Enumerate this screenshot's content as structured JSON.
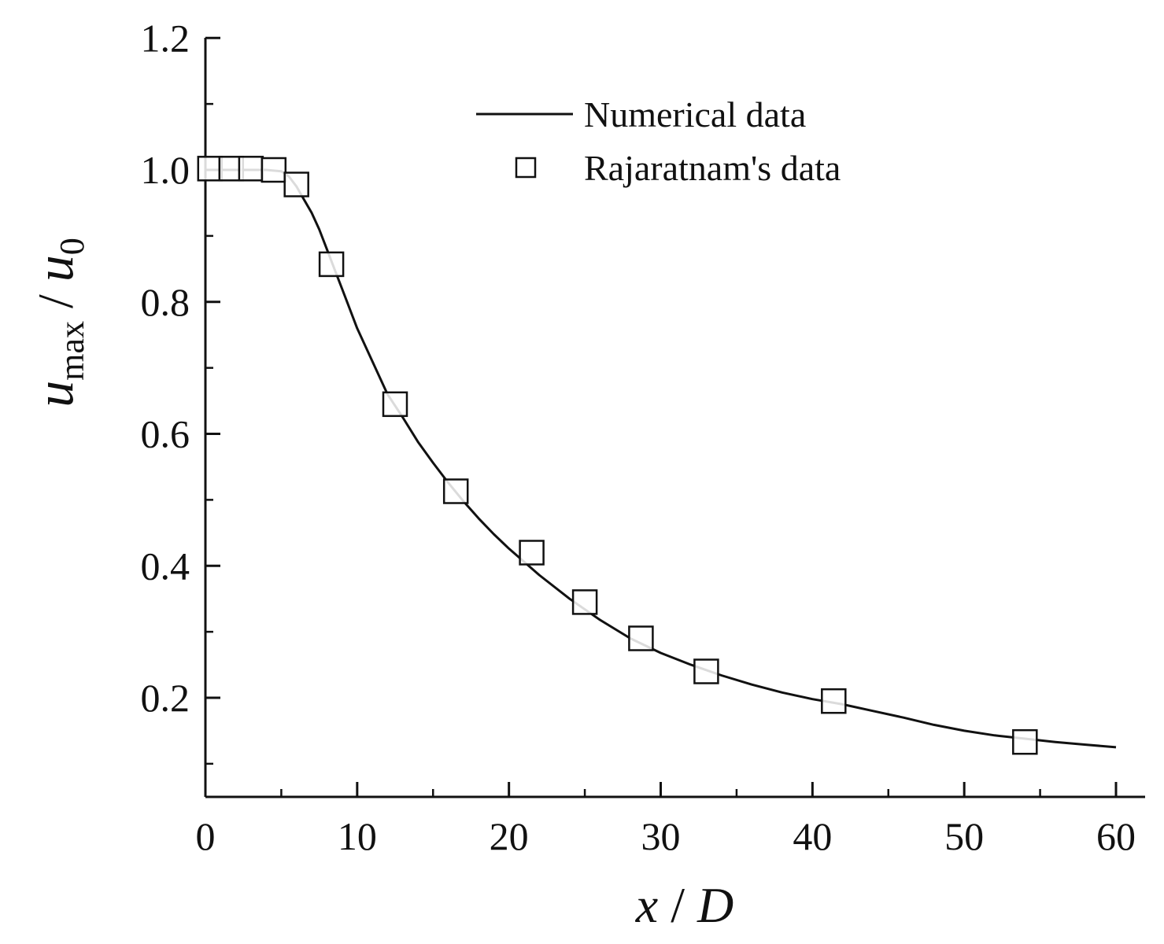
{
  "chart_data": {
    "type": "line+scatter",
    "title": "",
    "xlabel": "x / D",
    "ylabel": "u_max / u_0",
    "xlabel_parts": {
      "left": "x",
      "sep": " / ",
      "right": "D"
    },
    "ylabel_parts": {
      "main": "u",
      "sub": "max",
      "sep": " / ",
      "main2": "u",
      "sub2": "0"
    },
    "xlim": [
      0,
      62
    ],
    "ylim": [
      0.05,
      1.2
    ],
    "xticks": [
      0,
      10,
      20,
      30,
      40,
      50,
      60
    ],
    "xtick_labels": [
      "0",
      "10",
      "20",
      "30",
      "40",
      "50",
      "60"
    ],
    "yticks": [
      0.2,
      0.4,
      0.6,
      0.8,
      1.0,
      1.2
    ],
    "ytick_labels": [
      "0.2",
      "0.4",
      "0.6",
      "0.8",
      "1.0",
      "1.2"
    ],
    "legend_position": "top-right",
    "series": [
      {
        "name": "Numerical data",
        "kind": "line",
        "x": [
          0,
          1,
          2,
          3,
          4,
          5,
          5.5,
          6,
          6.5,
          7,
          7.5,
          8,
          8.5,
          9,
          9.5,
          10,
          11,
          12,
          13,
          14,
          15,
          16,
          17,
          18,
          19,
          20,
          22,
          24,
          26,
          28,
          30,
          32,
          34,
          36,
          38,
          40,
          42,
          44,
          46,
          48,
          50,
          52,
          54,
          56,
          58,
          60
        ],
        "y": [
          1.0,
          1.0,
          1.0,
          1.0,
          1.0,
          0.998,
          0.99,
          0.975,
          0.955,
          0.935,
          0.91,
          0.88,
          0.85,
          0.82,
          0.79,
          0.76,
          0.71,
          0.66,
          0.625,
          0.588,
          0.556,
          0.526,
          0.498,
          0.472,
          0.448,
          0.426,
          0.386,
          0.35,
          0.318,
          0.29,
          0.268,
          0.25,
          0.234,
          0.22,
          0.208,
          0.198,
          0.19,
          0.18,
          0.17,
          0.159,
          0.15,
          0.143,
          0.138,
          0.133,
          0.129,
          0.125
        ]
      },
      {
        "name": "Rajaratnam's data",
        "kind": "scatter",
        "marker": "open-square",
        "x": [
          0.3,
          1.7,
          3.0,
          4.5,
          6.0,
          8.3,
          12.5,
          16.5,
          21.5,
          25.0,
          28.7,
          33.0,
          41.4,
          54.0
        ],
        "y": [
          1.002,
          1.002,
          1.002,
          1.0,
          0.978,
          0.857,
          0.645,
          0.513,
          0.42,
          0.345,
          0.29,
          0.24,
          0.195,
          0.133
        ]
      }
    ]
  }
}
